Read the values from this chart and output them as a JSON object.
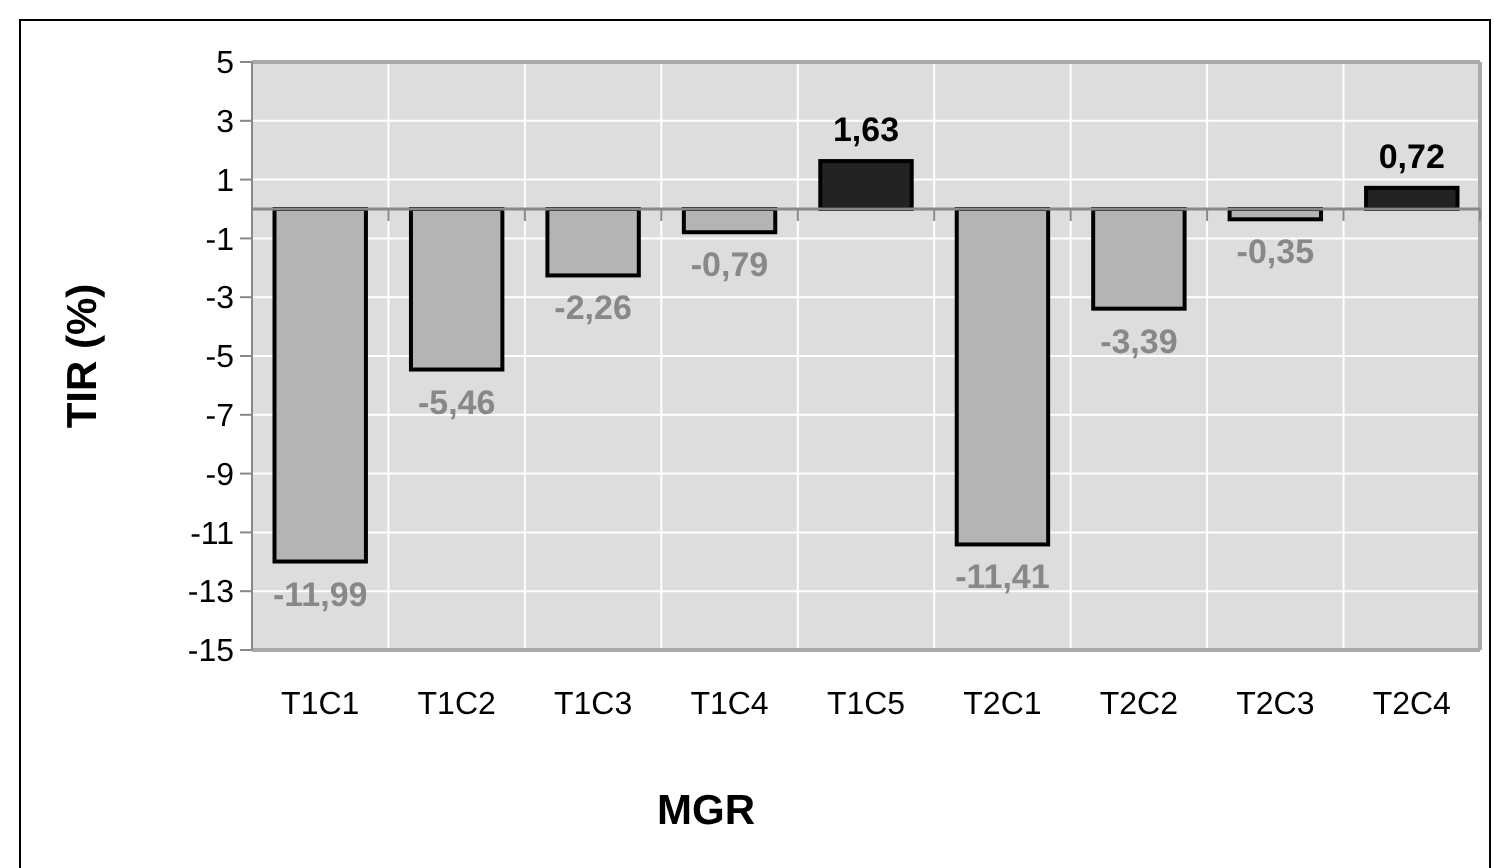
{
  "chart_data": {
    "type": "bar",
    "xlabel": "MGR",
    "ylabel": "TIR (%)",
    "categories": [
      "T1C1",
      "T1C2",
      "T1C3",
      "T1C4",
      "T1C5",
      "T2C1",
      "T2C2",
      "T2C3",
      "T2C4"
    ],
    "values": [
      -11.99,
      -5.46,
      -2.26,
      -0.79,
      1.63,
      -11.41,
      -3.39,
      -0.35,
      0.72
    ],
    "value_labels": [
      "-11,99",
      "-5,46",
      "-2,26",
      "-0,79",
      "1,63",
      "-11,41",
      "-3,39",
      "-0,35",
      "0,72"
    ],
    "colors": [
      "#b4b4b4",
      "#b4b4b4",
      "#b4b4b4",
      "#b4b4b4",
      "#222222",
      "#b4b4b4",
      "#b4b4b4",
      "#b4b4b4",
      "#222222"
    ],
    "ylim": [
      -15,
      5
    ],
    "yticks": [
      -15,
      -13,
      -11,
      -9,
      -7,
      -5,
      -3,
      -1,
      1,
      3,
      5
    ],
    "grid": true
  }
}
